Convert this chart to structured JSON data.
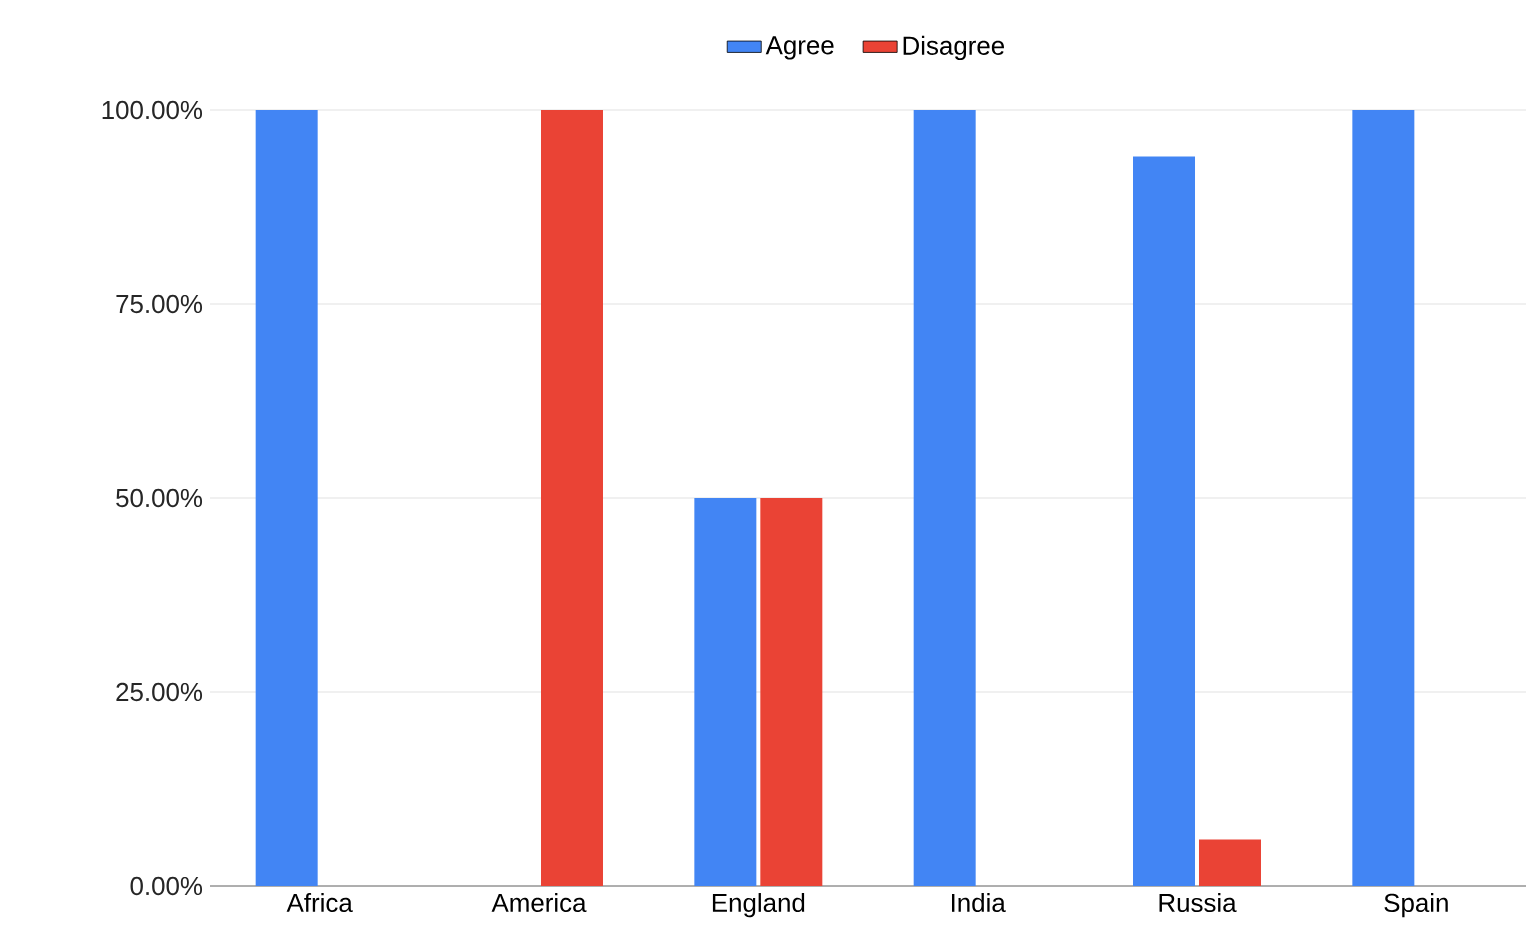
{
  "chart_data": {
    "type": "bar",
    "categories": [
      "Africa",
      "America",
      "England",
      "India",
      "Russia",
      "Spain"
    ],
    "series": [
      {
        "name": "Agree",
        "color": "#4285f4",
        "values": [
          100,
          0,
          50,
          100,
          94,
          100
        ]
      },
      {
        "name": "Disagree",
        "color": "#ea4335",
        "values": [
          0,
          100,
          50,
          0,
          6,
          0
        ]
      }
    ],
    "ylim": [
      0,
      100
    ],
    "yticks": [
      {
        "value": 0,
        "label": "0.00%"
      },
      {
        "value": 25,
        "label": "25.00%"
      },
      {
        "value": 50,
        "label": "50.00%"
      },
      {
        "value": 75,
        "label": "75.00%"
      },
      {
        "value": 100,
        "label": "100.00%"
      }
    ],
    "grid": "y",
    "legend": "top"
  }
}
